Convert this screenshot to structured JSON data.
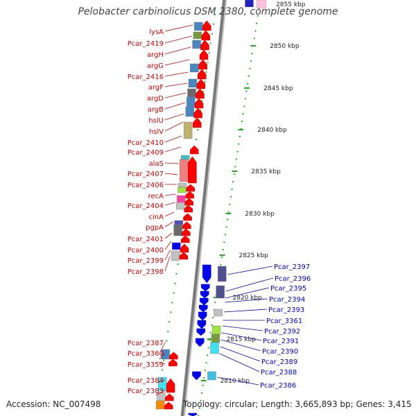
{
  "title": "Pelobacter carbinolicus DSM 2380, complete genome",
  "footer": {
    "accession": "Accession: NC_007498",
    "summary": "Topology: circular; Length: 3,665,893 bp; Genes: 3,415"
  },
  "colors": {
    "left_label": "#cc0000",
    "right_label": "#0000cc",
    "forward_gene": "#ff0000",
    "reverse_gene": "#0000ee",
    "backbone": "#888888",
    "ruler": "#22aa22"
  },
  "ruler": {
    "unit": "kbp",
    "ticks": [
      "2855 kbp",
      "2850 kbp",
      "2845 kbp",
      "2840 kbp",
      "2835 kbp",
      "2830 kbp",
      "2825 kbp",
      "2820 kbp",
      "2815 kbp",
      "2810 kbp"
    ]
  },
  "left_genes": [
    "lysA",
    "Pcar_2419",
    "argH",
    "argG",
    "Pcar_2416",
    "argF",
    "argD",
    "argB",
    "hslU",
    "hslV",
    "Pcar_2410",
    "Pcar_2409",
    "alaS",
    "Pcar_2407",
    "Pcar_2406",
    "recA",
    "Pcar_2404",
    "cinA",
    "pgpA",
    "Pcar_2401",
    "Pcar_2400",
    "Pcar_2399",
    "Pcar_2398",
    "Pcar_2387",
    "Pcar_3360",
    "Pcar_3359",
    "Pcar_2384",
    "Pcar_2383"
  ],
  "right_genes": [
    "Pcar_2397",
    "Pcar_2396",
    "Pcar_2395",
    "Pcar_2394",
    "Pcar_2393",
    "Pcar_3361",
    "Pcar_2392",
    "Pcar_2391",
    "Pcar_2390",
    "Pcar_2389",
    "Pcar_2388",
    "Pcar_2386"
  ]
}
